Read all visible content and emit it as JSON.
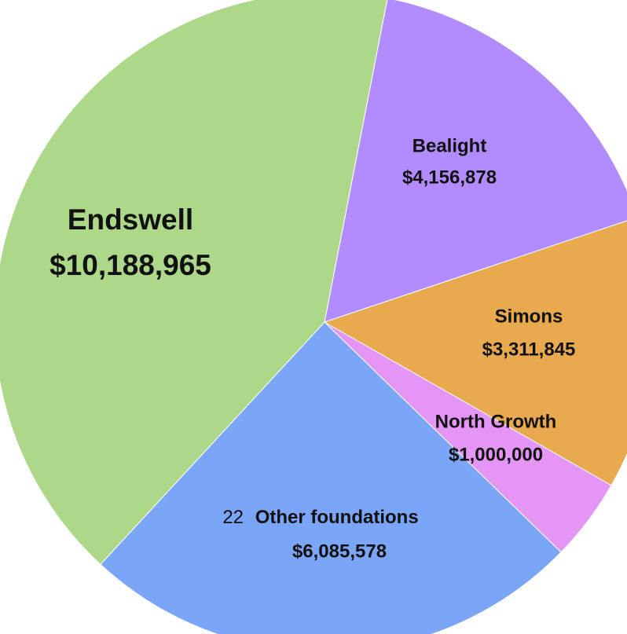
{
  "chart_data": {
    "type": "pie",
    "title": "",
    "slices": [
      {
        "label": "Bealight",
        "value_text": "$4,156,878",
        "value": 4156878,
        "color": "#b28cff"
      },
      {
        "label": "Simons",
        "value_text": "$3,311,845",
        "value": 3311845,
        "color": "#e8a94f"
      },
      {
        "label": "North Growth",
        "value_text": "$1,000,000",
        "value": 1000000,
        "color": "#e495f6"
      },
      {
        "label_prefix": "22",
        "label": "Other foundations",
        "value_text": "$6,085,578",
        "value": 6085578,
        "color": "#7ba5f7"
      },
      {
        "label": "Endswell",
        "value_text": "$10,188,965",
        "value": 10188965,
        "color": "#add88a"
      }
    ],
    "start_angle_deg": 11
  }
}
